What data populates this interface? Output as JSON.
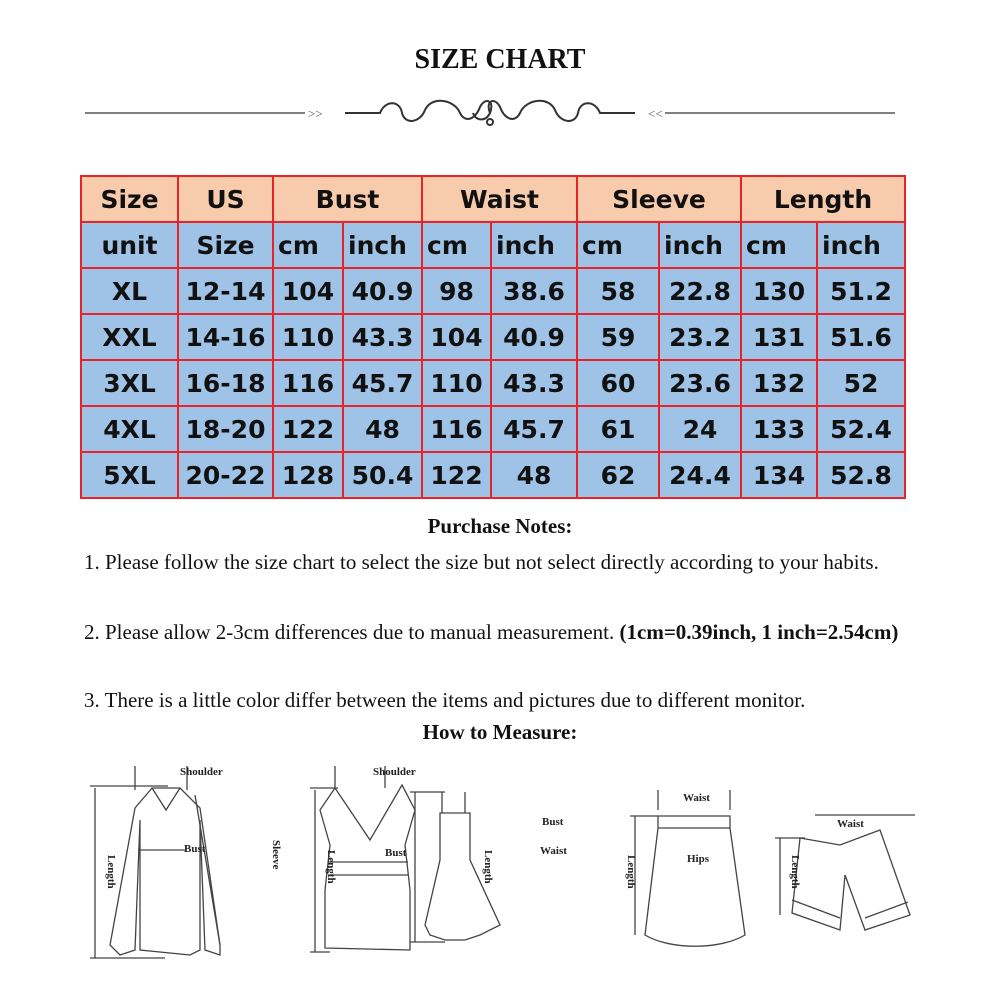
{
  "title": "SIZE CHART",
  "table": {
    "header": [
      "Size",
      "US",
      "Bust",
      "Waist",
      "Sleeve",
      "Length"
    ],
    "units": [
      "unit",
      "Size",
      "cm",
      "inch",
      "cm",
      "inch",
      "cm",
      "inch",
      "cm",
      "inch"
    ],
    "rows": [
      [
        "XL",
        "12-14",
        "104",
        "40.9",
        "98",
        "38.6",
        "58",
        "22.8",
        "130",
        "51.2"
      ],
      [
        "XXL",
        "14-16",
        "110",
        "43.3",
        "104",
        "40.9",
        "59",
        "23.2",
        "131",
        "51.6"
      ],
      [
        "3XL",
        "16-18",
        "116",
        "45.7",
        "110",
        "43.3",
        "60",
        "23.6",
        "132",
        "52"
      ],
      [
        "4XL",
        "18-20",
        "122",
        "48",
        "116",
        "45.7",
        "61",
        "24",
        "133",
        "52.4"
      ],
      [
        "5XL",
        "20-22",
        "128",
        "50.4",
        "122",
        "48",
        "62",
        "24.4",
        "134",
        "52.8"
      ]
    ],
    "colors": {
      "header_bg": "#f8cbad",
      "body_bg": "#9fc3e7",
      "border": "#e8242b"
    }
  },
  "notes": {
    "heading": "Purchase Notes:",
    "n1": "1. Please follow the size chart to select the size but not select directly according to your habits.",
    "n2": "2. Please allow 2-3cm differences due to manual measurement. ",
    "n2_bold": "(1cm=0.39inch, 1 inch=2.54cm)",
    "n3": "3. There is a little color differ between the items and pictures due to different monitor."
  },
  "measure": {
    "heading": "How to Measure:",
    "labels": {
      "shoulder": "Shoulder",
      "bust": "Bust",
      "sleeve": "Sleeve",
      "length": "Length",
      "waist": "Waist",
      "hips": "Hips"
    }
  }
}
